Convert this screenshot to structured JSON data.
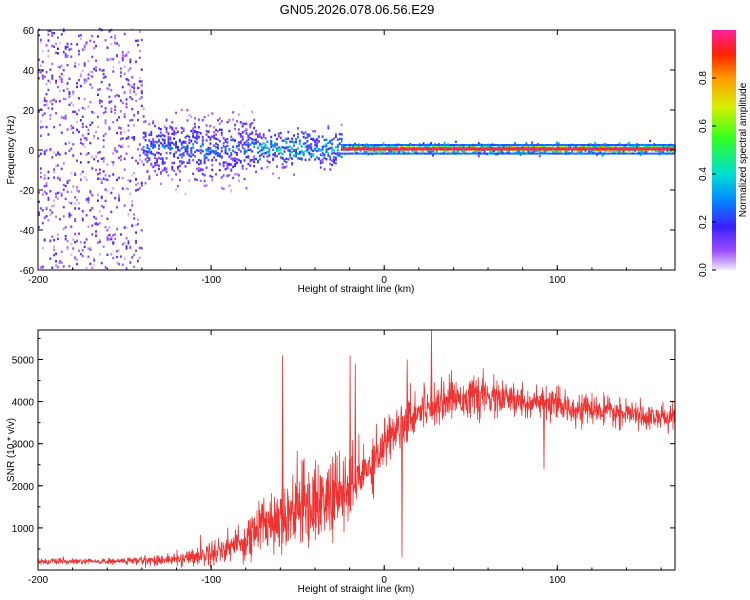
{
  "title": "GN05.2026.078.06.56.E29",
  "chart_data": [
    {
      "type": "heatmap",
      "name": "spectrogram",
      "xlabel": "Height of straight line (km)",
      "ylabel": "Frequency (Hz)",
      "xlim": [
        -200,
        168
      ],
      "ylim": [
        -60,
        60
      ],
      "xticks": [
        -200,
        -100,
        0,
        100
      ],
      "yticks": [
        -60,
        -40,
        -20,
        0,
        20,
        40,
        60
      ],
      "ytick_labels": [
        "-60",
        "-40",
        "-20",
        "0",
        "20",
        "40",
        "60"
      ],
      "xtick_labels": [
        "-200",
        "-100",
        "0",
        "100"
      ],
      "description_points": [
        {
          "x_start": -200,
          "x_end": -140,
          "freq_spread": 60,
          "amplitude": 0.15
        },
        {
          "x_start": -140,
          "x_end": -75,
          "freq_spread": 15,
          "amplitude": 0.3
        },
        {
          "x_start": -75,
          "x_end": -25,
          "freq_spread": 8,
          "amplitude": 0.45
        },
        {
          "x_start": -25,
          "x_end": 168,
          "freq_spread": 2,
          "amplitude": 0.95
        }
      ],
      "colorbar": {
        "label": "Normalized spectral amplitude",
        "range": [
          0.0,
          1.0
        ],
        "ticks": [
          0.0,
          0.2,
          0.4,
          0.6,
          0.8
        ],
        "tick_labels": [
          "0.0",
          "0.2",
          "0.4",
          "0.6",
          "0.8"
        ]
      }
    },
    {
      "type": "line",
      "name": "snr",
      "xlabel": "Height of straight line (km)",
      "ylabel": "SNR (10 * v/v)",
      "xlim": [
        -200,
        168
      ],
      "ylim": [
        0,
        5700
      ],
      "xticks": [
        -200,
        -100,
        0,
        100
      ],
      "xtick_labels": [
        "-200",
        "-100",
        "0",
        "100"
      ],
      "yticks": [
        1000,
        2000,
        3000,
        4000,
        5000
      ],
      "ytick_labels": [
        "1000",
        "2000",
        "3000",
        "4000",
        "5000"
      ],
      "series": [
        {
          "name": "SNR",
          "color": "#ee3333",
          "envelope": {
            "x": [
              -200,
              -160,
              -120,
              -100,
              -80,
              -70,
              -60,
              -50,
              -40,
              -30,
              -20,
              -10,
              0,
              10,
              20,
              30,
              40,
              60,
              80,
              100,
              120,
              140,
              168
            ],
            "mean": [
              200,
              200,
              250,
              400,
              700,
              1100,
              1300,
              1500,
              1600,
              1700,
              1900,
              2400,
              3000,
              3500,
              3800,
              4000,
              4100,
              4100,
              4000,
              3900,
              3800,
              3700,
              3600
            ],
            "noise": [
              60,
              60,
              120,
              250,
              400,
              600,
              700,
              800,
              800,
              800,
              700,
              600,
              500,
              450,
              450,
              400,
              400,
              380,
              350,
              300,
              280,
              250,
              250
            ]
          },
          "spikes": [
            {
              "x": -59,
              "y": 5100
            },
            {
              "x": -20,
              "y": 5100
            },
            {
              "x": -17,
              "y": 4900
            },
            {
              "x": 13,
              "y": 5000
            },
            {
              "x": 27,
              "y": 5700
            },
            {
              "x": 10,
              "y": 300
            },
            {
              "x": 92,
              "y": 2400
            }
          ]
        }
      ]
    }
  ]
}
